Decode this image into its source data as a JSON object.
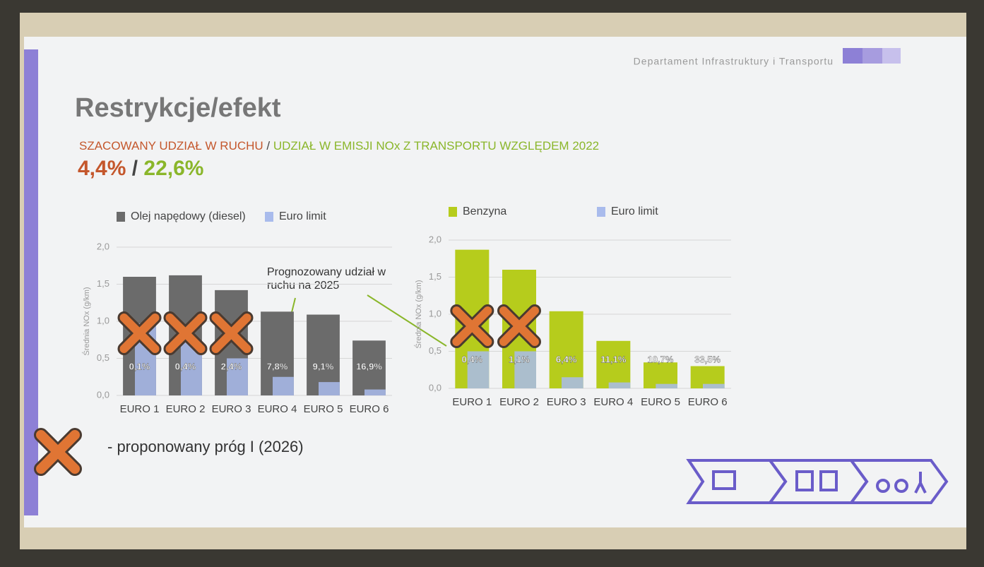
{
  "slide": {
    "department": "Departament Infrastruktury i Transportu",
    "title": "Restrykcje/efekt",
    "subtitle_left": "SZACOWANY UDZIAŁ W RUCHU",
    "subtitle_separator": " / ",
    "subtitle_right": "UDZIAŁ W EMISJI NOx Z TRANSPORTU WZGLĘDEM 2022",
    "share_traffic": "4,4%",
    "share_separator": " / ",
    "share_emission": "22,6%",
    "legend_note": "- proponowany próg I (2026)"
  },
  "chart_data": [
    {
      "type": "bar",
      "categories": [
        "EURO 1",
        "EURO 2",
        "EURO 3",
        "EURO 4",
        "EURO 5",
        "EURO 6"
      ],
      "series": [
        {
          "name": "Olej napędowy (diesel)",
          "color": "#6b6b6b",
          "values": [
            1.6,
            1.62,
            1.42,
            1.13,
            1.09,
            0.74
          ]
        },
        {
          "name": "Euro limit",
          "color": "#a9bbec",
          "values": [
            0.97,
            0.72,
            0.5,
            0.25,
            0.18,
            0.08
          ]
        }
      ],
      "share_labels": [
        "0,1%",
        "0,4%",
        "2,4%",
        "7,8%",
        "9,1%",
        "16,9%"
      ],
      "crossed": [
        true,
        true,
        true,
        false,
        false,
        false
      ],
      "y_label": "Średnia NOx (g/km)",
      "annotation": "Prognozowany udział w ruchu na 2025",
      "ylim": [
        0,
        2
      ],
      "yticks": [
        {
          "value": 0,
          "label": "0,0"
        },
        {
          "value": 0.5,
          "label": "0,5"
        },
        {
          "value": 1,
          "label": "1,0"
        },
        {
          "value": 1.5,
          "label": "1,5"
        },
        {
          "value": 2,
          "label": "2,0"
        }
      ],
      "grid": true
    },
    {
      "type": "bar",
      "categories": [
        "EURO 1",
        "EURO 2",
        "EURO 3",
        "EURO 4",
        "EURO 5",
        "EURO 6"
      ],
      "series": [
        {
          "name": "Benzyna",
          "color": "#b6cc1c",
          "values": [
            1.87,
            1.6,
            1.04,
            0.64,
            0.35,
            0.3
          ]
        },
        {
          "name": "Euro limit",
          "color": "#a9bbec",
          "values": [
            0.5,
            0.5,
            0.15,
            0.08,
            0.06,
            0.06
          ]
        }
      ],
      "share_labels": [
        "0,4%",
        "1,1%",
        "6,4%",
        "11,1%",
        "10,7%",
        "33,5%"
      ],
      "crossed": [
        true,
        true,
        false,
        false,
        false,
        false
      ],
      "y_label": "Średnia NOx (g/km)",
      "ylim": [
        0,
        2
      ],
      "yticks": [
        {
          "value": 0,
          "label": "0,0"
        },
        {
          "value": 0.5,
          "label": "0,5"
        },
        {
          "value": 1,
          "label": "1,0"
        },
        {
          "value": 1.5,
          "label": "1,5"
        },
        {
          "value": 2,
          "label": "2,0"
        }
      ],
      "grid": true
    }
  ]
}
